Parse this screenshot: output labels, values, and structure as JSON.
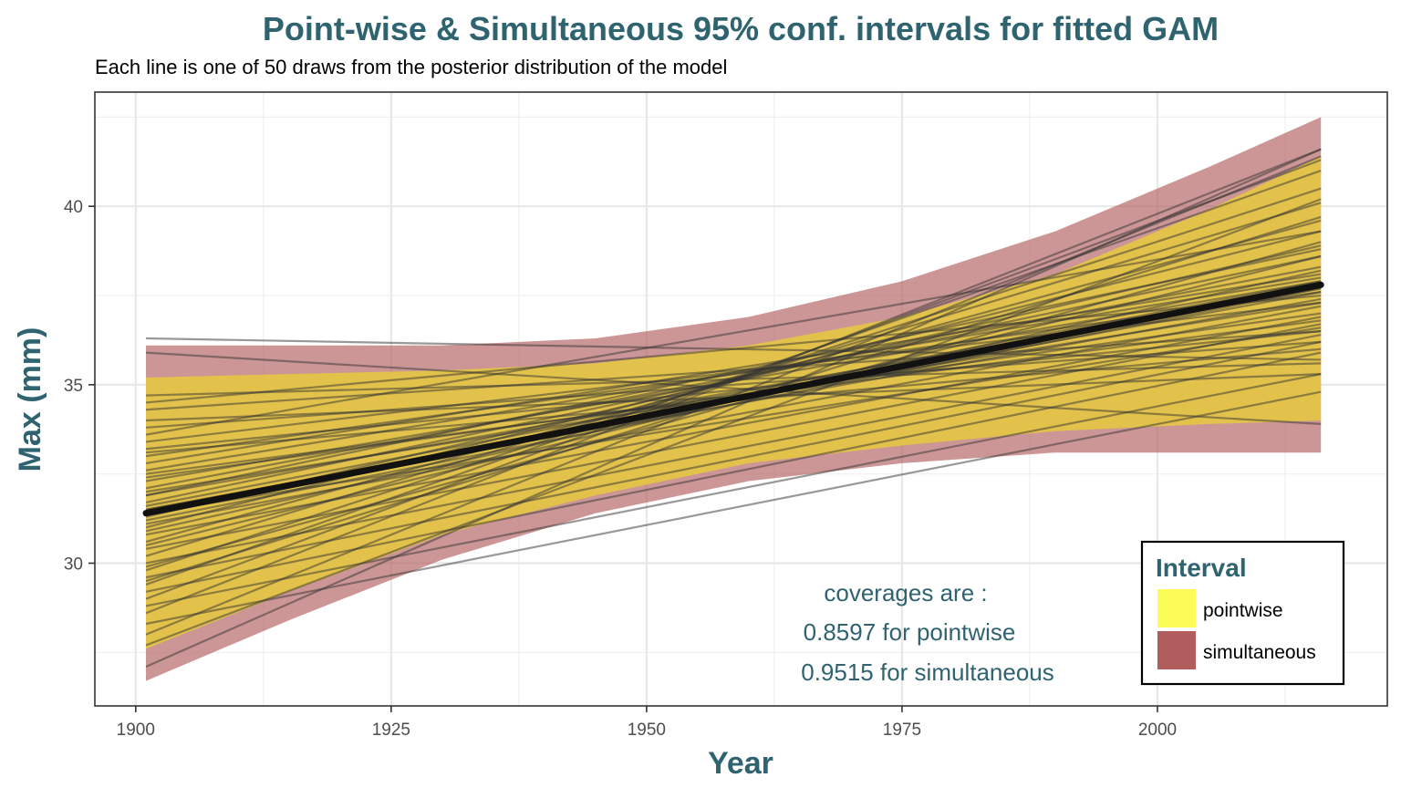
{
  "chart_data": {
    "type": "line",
    "title": "Point-wise & Simultaneous 95% conf. intervals for fitted GAM",
    "subtitle": "Each line is one of 50 draws from the posterior distribution of the model",
    "xlabel": "Year",
    "ylabel": "Max (mm)",
    "xlim": [
      1896,
      2022.5
    ],
    "ylim": [
      26.0,
      43.2
    ],
    "x_ticks": [
      1900,
      1925,
      1950,
      1975,
      2000
    ],
    "x_tick_labels": [
      "1900",
      "1925",
      "1950",
      "1975",
      "2000"
    ],
    "y_ticks": [
      30,
      35,
      40
    ],
    "y_tick_labels": [
      "30",
      "35",
      "40"
    ],
    "grid": true,
    "x": [
      1901,
      1915,
      1930,
      1945,
      1960,
      1975,
      1990,
      2005,
      2016
    ],
    "bands": [
      {
        "name": "simultaneous",
        "color": "#b25d5d",
        "lower": [
          26.7,
          28.4,
          30.1,
          31.4,
          32.3,
          32.8,
          33.1,
          33.1,
          33.1
        ],
        "upper": [
          36.1,
          36.1,
          36.1,
          36.3,
          36.9,
          37.9,
          39.3,
          41.1,
          42.5
        ]
      },
      {
        "name": "pointwise",
        "color": "#fbfc56",
        "lower": [
          27.6,
          29.2,
          30.8,
          31.9,
          32.8,
          33.3,
          33.7,
          33.9,
          34.0
        ],
        "upper": [
          35.2,
          35.3,
          35.4,
          35.6,
          36.1,
          36.9,
          38.1,
          39.9,
          41.4
        ]
      }
    ],
    "fit": {
      "name": "fitted",
      "x": [
        1901,
        2016
      ],
      "y": [
        31.4,
        37.8
      ]
    },
    "draws_x": [
      1901,
      2016
    ],
    "draws": [
      [
        36.3,
        35.7
      ],
      [
        35.9,
        33.9
      ],
      [
        34.7,
        35.6
      ],
      [
        34.3,
        36.5
      ],
      [
        33.8,
        36.2
      ],
      [
        33.4,
        37.3
      ],
      [
        33.0,
        37.6
      ],
      [
        32.6,
        38.0
      ],
      [
        32.3,
        37.9
      ],
      [
        32.1,
        38.3
      ],
      [
        31.9,
        37.7
      ],
      [
        31.7,
        38.6
      ],
      [
        31.5,
        37.4
      ],
      [
        31.3,
        38.9
      ],
      [
        31.1,
        37.2
      ],
      [
        31.0,
        39.3
      ],
      [
        30.8,
        36.9
      ],
      [
        30.6,
        39.6
      ],
      [
        30.4,
        36.7
      ],
      [
        30.2,
        40.1
      ],
      [
        30.0,
        36.4
      ],
      [
        29.8,
        40.5
      ],
      [
        29.6,
        36.2
      ],
      [
        29.4,
        41.0
      ],
      [
        29.2,
        35.9
      ],
      [
        29.0,
        41.3
      ],
      [
        28.8,
        35.3
      ],
      [
        28.6,
        41.6
      ],
      [
        28.3,
        34.8
      ],
      [
        28.0,
        41.4
      ],
      [
        27.7,
        40.2
      ],
      [
        27.1,
        41.6
      ],
      [
        31.4,
        36.6
      ],
      [
        31.9,
        38.8
      ],
      [
        32.4,
        37.0
      ],
      [
        32.8,
        38.1
      ],
      [
        33.1,
        36.0
      ],
      [
        33.6,
        39.3
      ],
      [
        34.0,
        35.3
      ],
      [
        34.5,
        37.5
      ],
      [
        31.6,
        37.9
      ],
      [
        31.2,
        37.7
      ],
      [
        30.9,
        38.2
      ],
      [
        32.0,
        37.3
      ],
      [
        30.5,
        38.6
      ],
      [
        32.5,
        36.8
      ],
      [
        29.9,
        39.0
      ],
      [
        33.2,
        36.5
      ],
      [
        29.5,
        39.7
      ],
      [
        31.5,
        37.6
      ]
    ],
    "legend": {
      "title": "Interval",
      "position": "bottom-right",
      "items": [
        {
          "label": "pointwise",
          "color": "#fbfc56"
        },
        {
          "label": "simultaneous",
          "color": "#b25d5d"
        }
      ]
    },
    "annotation_lines": [
      "coverages  are :",
      "0.8597  for pointwise",
      "0.9515  for simultaneous"
    ]
  }
}
